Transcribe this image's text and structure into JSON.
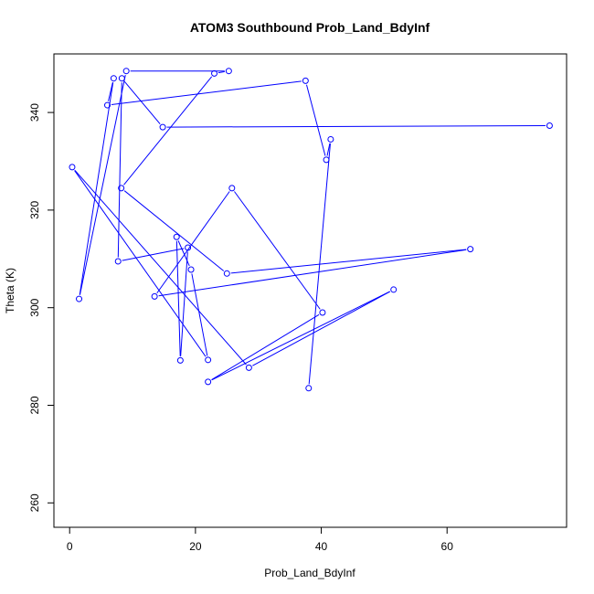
{
  "chart_data": {
    "type": "scatter",
    "title": "ATOM3 Southbound Prob_Land_BdyInf",
    "xlabel": "Prob_Land_BdyInf",
    "ylabel": "Theta (K)",
    "xlim": [
      -2.5,
      79
    ],
    "ylim": [
      255,
      352
    ],
    "x_ticks": [
      0,
      20,
      40,
      60
    ],
    "y_ticks": [
      260,
      280,
      300,
      320,
      340
    ],
    "grid": false,
    "legend": "none",
    "color": "#0000ff",
    "series": [
      {
        "points": [
          [
            38.0,
            283.5
          ],
          [
            41.5,
            334.5
          ],
          [
            40.8,
            330.3
          ],
          [
            37.5,
            346.5
          ],
          [
            6.0,
            341.5
          ],
          [
            7.0,
            347.0
          ],
          [
            1.5,
            301.8
          ],
          [
            9.0,
            348.5
          ],
          [
            25.3,
            348.5
          ],
          [
            23.0,
            348.0
          ],
          [
            8.2,
            324.5
          ],
          [
            25.0,
            307.0
          ],
          [
            63.7,
            312.0
          ],
          [
            13.5,
            302.3
          ],
          [
            25.8,
            324.5
          ],
          [
            40.2,
            299.0
          ],
          [
            22.0,
            284.8
          ],
          [
            51.5,
            303.7
          ],
          [
            28.5,
            287.7
          ],
          [
            0.4,
            328.8
          ],
          [
            22.0,
            289.3
          ],
          [
            19.3,
            307.8
          ],
          [
            17.0,
            314.5
          ],
          [
            17.6,
            289.2
          ],
          [
            18.8,
            312.3
          ],
          [
            7.7,
            309.5
          ],
          [
            8.3,
            347.0
          ],
          [
            14.8,
            337.0
          ],
          [
            76.3,
            337.3
          ]
        ]
      }
    ]
  }
}
